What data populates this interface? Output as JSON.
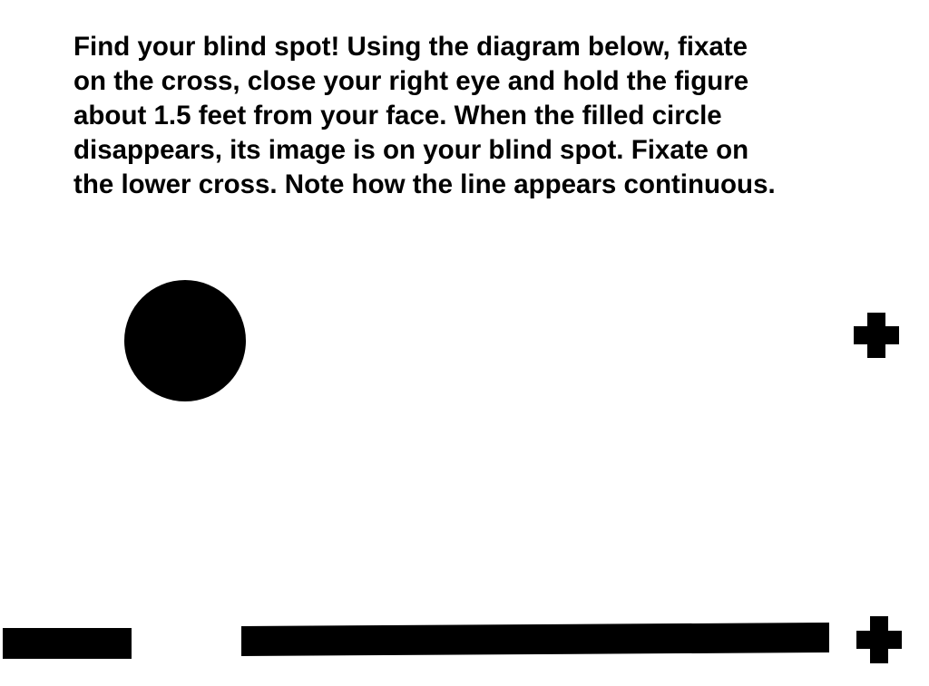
{
  "instructions": {
    "lines": [
      "Find your blind spot!  Using the diagram below, fixate",
      "on the cross, close your right eye and hold the figure",
      "about 1.5 feet from your face.  When the filled circle",
      "disappears, its image is on your blind spot.  Fixate on",
      "the lower cross. Note how the line appears continuous."
    ]
  },
  "colors": {
    "ink": "#000000",
    "background": "#ffffff"
  }
}
